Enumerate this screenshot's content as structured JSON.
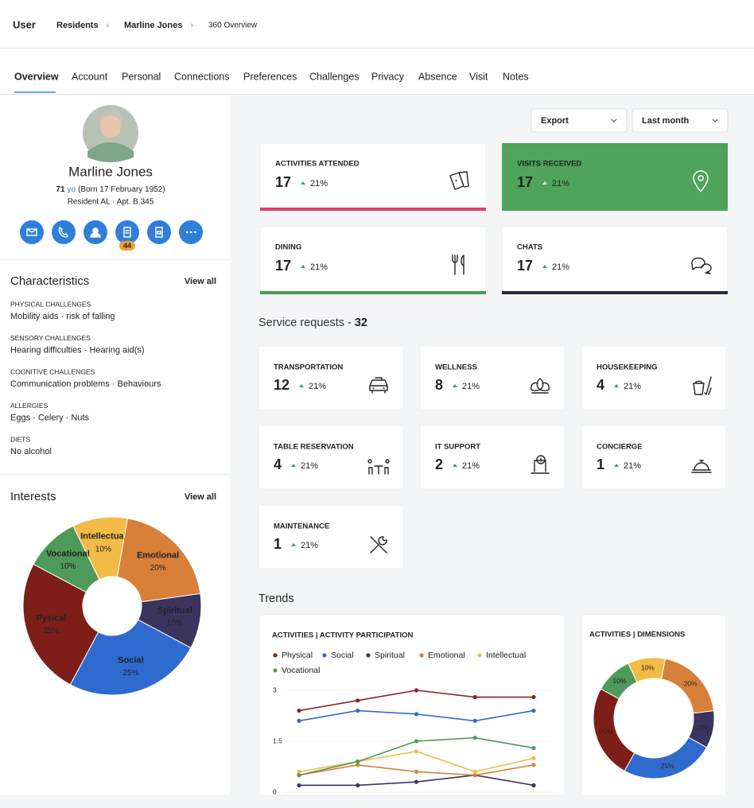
{
  "breadcrumb": {
    "root": "User",
    "items": [
      "Residents",
      "Marline Jones",
      "360 Overview"
    ]
  },
  "tabs": [
    "Overview",
    "Account",
    "Personal",
    "Connections",
    "Preferences",
    "Challenges",
    "Privacy",
    "Absence",
    "Visit",
    "Notes"
  ],
  "profile": {
    "name": "Marline Jones",
    "age": "71",
    "age_unit": "yo",
    "born": "(Born 17 February 1952)",
    "residence": "Resident AL · Apt. B.345",
    "badge": "44"
  },
  "characteristics": {
    "title": "Characteristics",
    "view_all": "View all",
    "groups": [
      {
        "label": "PHYSICAL CHALLENGES",
        "value": "Mobility aids · risk of falling"
      },
      {
        "label": "SENSORY CHALLENGES",
        "value": "Hearing difficulties · Hearing aid(s)"
      },
      {
        "label": "COGNITIVE CHALLENGES",
        "value": "Communication problems · Behaviours"
      },
      {
        "label": "ALLERGIES",
        "value": "Eggs · Celery · Nuts"
      },
      {
        "label": "DIETS",
        "value": "No alcohol"
      }
    ]
  },
  "interests": {
    "title": "Interests",
    "view_all": "View all",
    "chart": {
      "type": "pie",
      "categories": [
        "Intellectual",
        "Emotional",
        "Spiritual",
        "Social",
        "Pysical",
        "Vocational"
      ],
      "values": [
        10,
        20,
        10,
        25,
        25,
        10
      ],
      "value_labels": [
        "10%",
        "20%",
        "10%",
        "25%",
        "25%",
        "10%"
      ],
      "colors": [
        "#f2bb47",
        "#d8803a",
        "#3a345e",
        "#2f6bcf",
        "#7e1e19",
        "#4e9a5a"
      ]
    }
  },
  "filters": {
    "export": "Export",
    "period": "Last month"
  },
  "kpis": [
    {
      "label": "ACTIVITIES ATTENDED",
      "value": "17",
      "change": "21%"
    },
    {
      "label": "VISITS RECEIVED",
      "value": "17",
      "change": "21%"
    },
    {
      "label": "DINING",
      "value": "17",
      "change": "21%"
    },
    {
      "label": "CHATS",
      "value": "17",
      "change": "21%"
    }
  ],
  "service_requests": {
    "title": "Service requests -",
    "total": "32",
    "items": [
      {
        "label": "TRANSPORTATION",
        "value": "12",
        "change": "21%"
      },
      {
        "label": "WELLNESS",
        "value": "8",
        "change": "21%"
      },
      {
        "label": "HOUSEKEEPING",
        "value": "4",
        "change": "21%"
      },
      {
        "label": "TABLE RESERVATION",
        "value": "4",
        "change": "21%"
      },
      {
        "label": "IT SUPPORT",
        "value": "2",
        "change": "21%"
      },
      {
        "label": "CONCIERGE",
        "value": "1",
        "change": "21%"
      },
      {
        "label": "MAINTENANCE",
        "value": "1",
        "change": "21%"
      }
    ]
  },
  "trends": {
    "title": "Trends",
    "line_chart": {
      "type": "line",
      "title": "ACTIVITIES | ACTIVITY PARTICIPATION",
      "ylim": [
        0,
        3
      ],
      "yticks": [
        0,
        1.5,
        3
      ],
      "grid": true,
      "series": [
        {
          "name": "Physical",
          "color": "#8b2420",
          "values": [
            2.4,
            2.7,
            3.0,
            2.8,
            2.8
          ]
        },
        {
          "name": "Social",
          "color": "#2f6bcf",
          "values": [
            2.1,
            2.4,
            2.3,
            2.1,
            2.4
          ]
        },
        {
          "name": "Spiritual",
          "color": "#3a345e",
          "values": [
            0.2,
            0.2,
            0.3,
            0.5,
            0.2
          ]
        },
        {
          "name": "Emotional",
          "color": "#d8803a",
          "values": [
            0.5,
            0.8,
            0.6,
            0.5,
            0.8
          ]
        },
        {
          "name": "Intellectual",
          "color": "#f2bb47",
          "values": [
            0.6,
            0.9,
            1.2,
            0.6,
            1.0
          ]
        },
        {
          "name": "Vocational",
          "color": "#4e9a5a",
          "values": [
            0.5,
            0.9,
            1.5,
            1.6,
            1.3
          ]
        }
      ]
    },
    "donut_chart": {
      "type": "donut",
      "title": "ACTIVITIES | DIMENSIONS",
      "values": [
        10,
        20,
        10,
        25,
        25,
        10
      ],
      "value_labels": [
        "10%",
        "20%",
        "10%",
        "25%",
        "25%",
        "10%"
      ],
      "colors": [
        "#f2bb47",
        "#d8803a",
        "#3a345e",
        "#2f6bcf",
        "#7e1e19",
        "#4e9a5a"
      ]
    }
  }
}
